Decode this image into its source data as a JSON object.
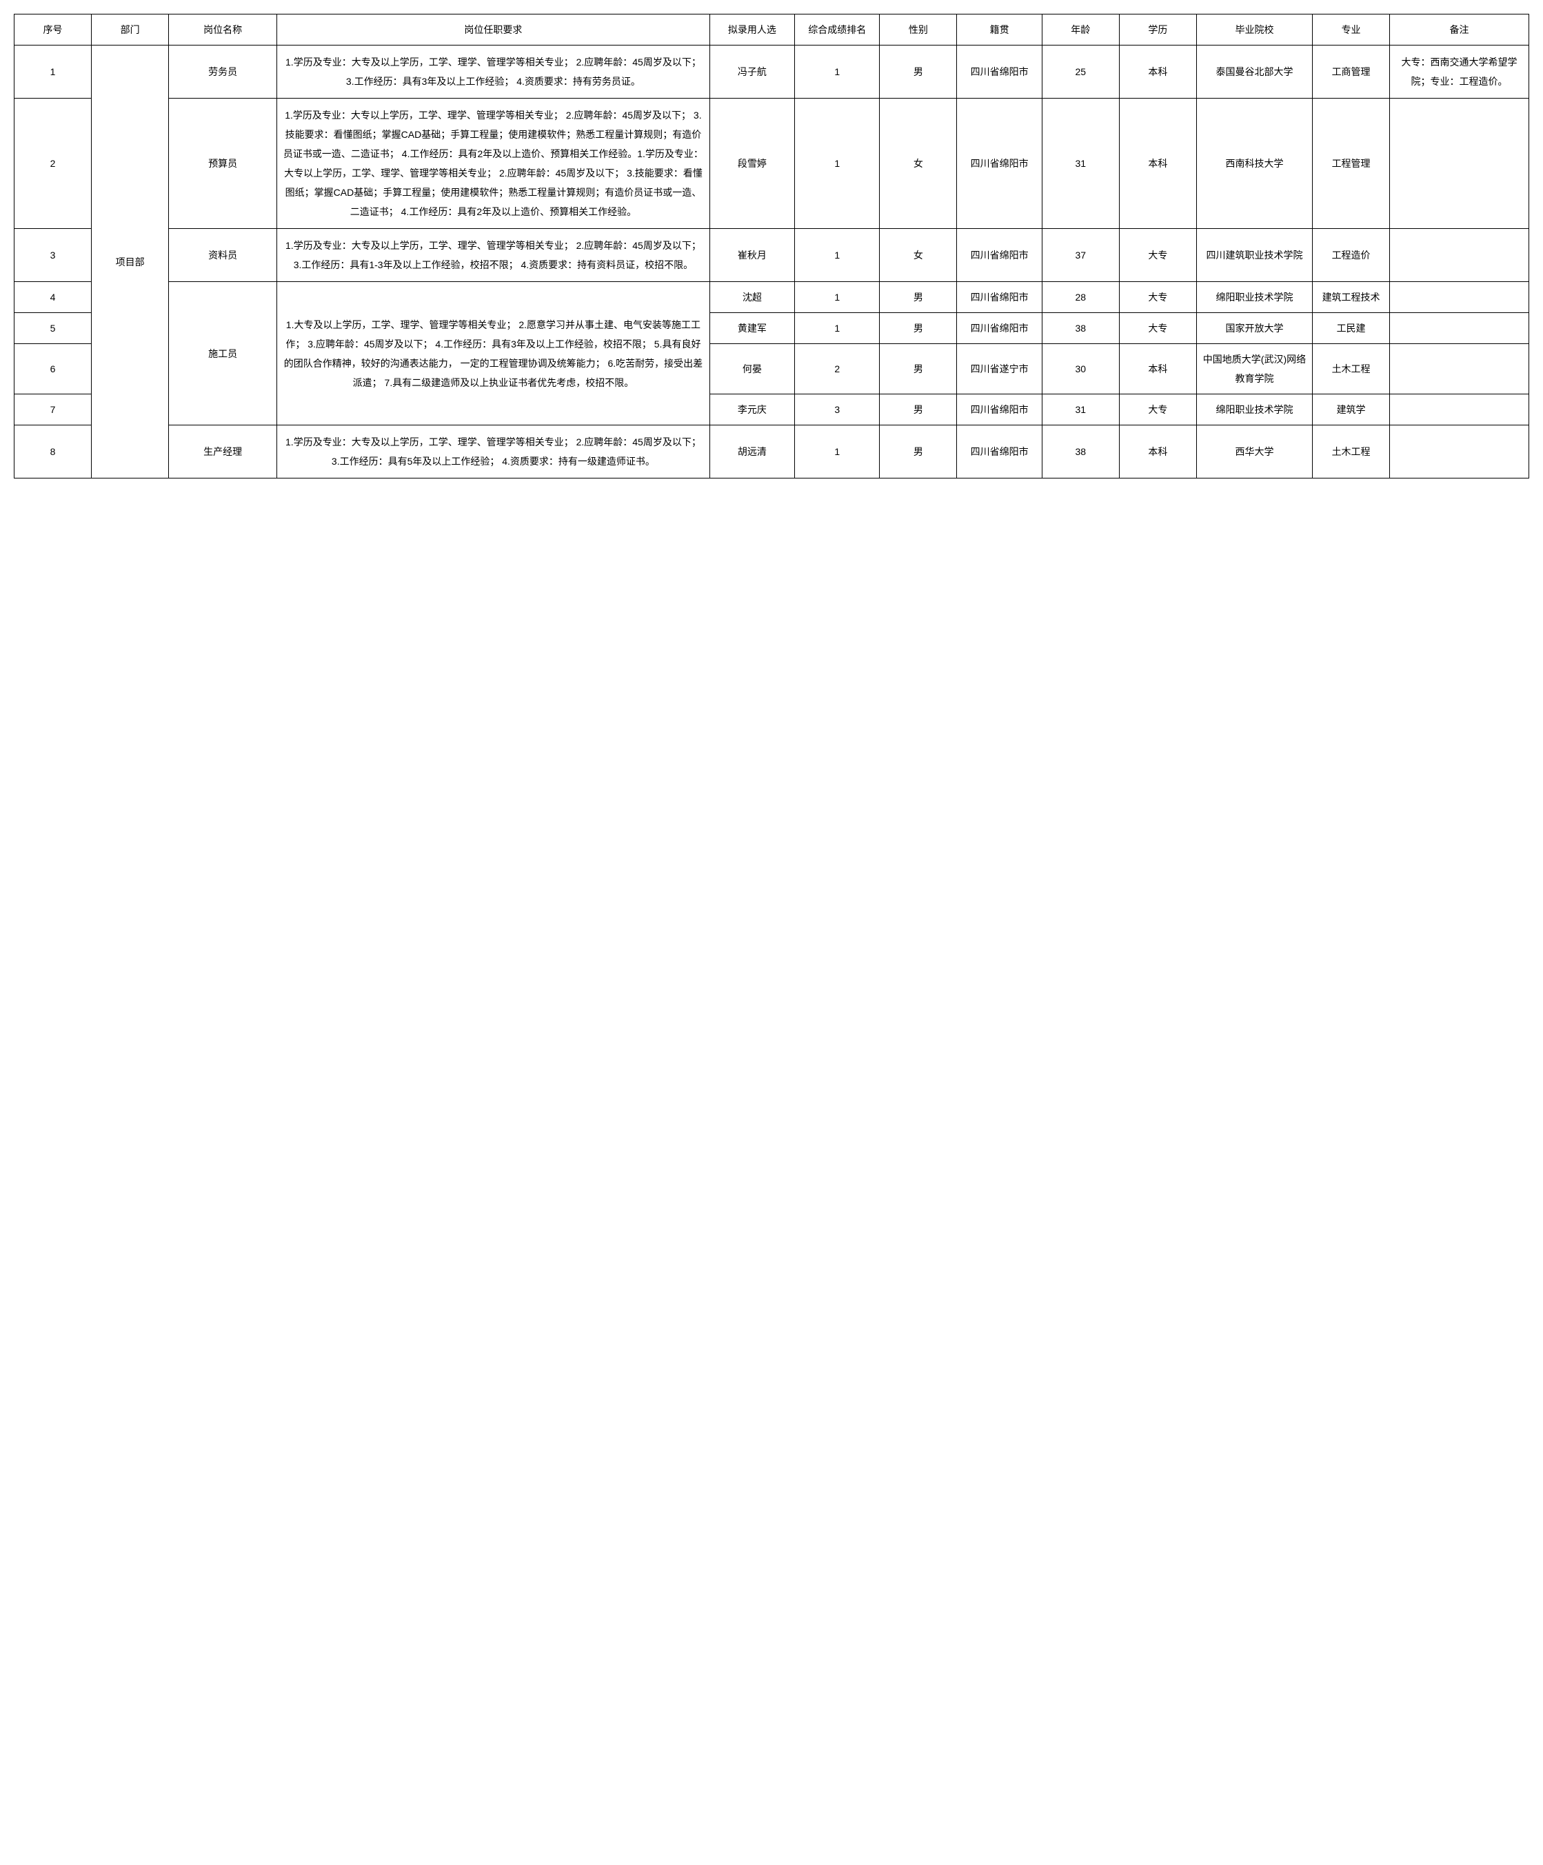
{
  "headers": {
    "seq": "序号",
    "dept": "部门",
    "position": "岗位名称",
    "requirement": "岗位任职要求",
    "candidate": "拟录用人选",
    "rank": "综合成绩排名",
    "gender": "性别",
    "origin": "籍贯",
    "age": "年龄",
    "education": "学历",
    "school": "毕业院校",
    "major": "专业",
    "remark": "备注"
  },
  "department": "项目部",
  "positions": {
    "p1": "劳务员",
    "p2": "预算员",
    "p3": "资料员",
    "p4": "施工员",
    "p5": "生产经理"
  },
  "requirements": {
    "r1": "1.学历及专业：大专及以上学历，工学、理学、管理学等相关专业； 2.应聘年龄：45周岁及以下； 3.工作经历：具有3年及以上工作经验； 4.资质要求：持有劳务员证。",
    "r2": "1.学历及专业：大专以上学历，工学、理学、管理学等相关专业； 2.应聘年龄：45周岁及以下； 3.技能要求：看懂图纸；掌握CAD基础；手算工程量；使用建模软件；熟悉工程量计算规则；有造价员证书或一造、二造证书； 4.工作经历：具有2年及以上造价、预算相关工作经验。1.学历及专业：大专以上学历，工学、理学、管理学等相关专业； 2.应聘年龄：45周岁及以下； 3.技能要求：看懂图纸；掌握CAD基础；手算工程量；使用建模软件；熟悉工程量计算规则；有造价员证书或一造、二造证书； 4.工作经历：具有2年及以上造价、预算相关工作经验。",
    "r3": "1.学历及专业：大专及以上学历，工学、理学、管理学等相关专业； 2.应聘年龄：45周岁及以下； 3.工作经历：具有1-3年及以上工作经验，校招不限； 4.资质要求：持有资料员证，校招不限。",
    "r4": "1.大专及以上学历，工学、理学、管理学等相关专业； 2.愿意学习并从事土建、电气安装等施工工作； 3.应聘年龄：45周岁及以下； 4.工作经历：具有3年及以上工作经验，校招不限； 5.具有良好的团队合作精神，较好的沟通表达能力， 一定的工程管理协调及统筹能力； 6.吃苦耐劳，接受出差派遣； 7.具有二级建造师及以上执业证书者优先考虑，校招不限。",
    "r5": "1.学历及专业：大专及以上学历，工学、理学、管理学等相关专业； 2.应聘年龄：45周岁及以下； 3.工作经历：具有5年及以上工作经验； 4.资质要求：持有一级建造师证书。"
  },
  "rows": {
    "row1": {
      "seq": "1",
      "candidate": "冯子航",
      "rank": "1",
      "gender": "男",
      "origin": "四川省绵阳市",
      "age": "25",
      "education": "本科",
      "school": "泰国曼谷北部大学",
      "major": "工商管理",
      "remark": "大专：西南交通大学希望学院；专业：工程造价。"
    },
    "row2": {
      "seq": "2",
      "candidate": "段雪婷",
      "rank": "1",
      "gender": "女",
      "origin": "四川省绵阳市",
      "age": "31",
      "education": "本科",
      "school": "西南科技大学",
      "major": "工程管理",
      "remark": ""
    },
    "row3": {
      "seq": "3",
      "candidate": "崔秋月",
      "rank": "1",
      "gender": "女",
      "origin": "四川省绵阳市",
      "age": "37",
      "education": "大专",
      "school": "四川建筑职业技术学院",
      "major": "工程造价",
      "remark": ""
    },
    "row4": {
      "seq": "4",
      "candidate": "沈超",
      "rank": "1",
      "gender": "男",
      "origin": "四川省绵阳市",
      "age": "28",
      "education": "大专",
      "school": "绵阳职业技术学院",
      "major": "建筑工程技术",
      "remark": ""
    },
    "row5": {
      "seq": "5",
      "candidate": "黄建军",
      "rank": "1",
      "gender": "男",
      "origin": "四川省绵阳市",
      "age": "38",
      "education": "大专",
      "school": "国家开放大学",
      "major": "工民建",
      "remark": ""
    },
    "row6": {
      "seq": "6",
      "candidate": "何晏",
      "rank": "2",
      "gender": "男",
      "origin": "四川省遂宁市",
      "age": "30",
      "education": "本科",
      "school": "中国地质大学(武汉)网络教育学院",
      "major": "土木工程",
      "remark": ""
    },
    "row7": {
      "seq": "7",
      "candidate": "李元庆",
      "rank": "3",
      "gender": "男",
      "origin": "四川省绵阳市",
      "age": "31",
      "education": "大专",
      "school": "绵阳职业技术学院",
      "major": "建筑学",
      "remark": ""
    },
    "row8": {
      "seq": "8",
      "candidate": "胡远清",
      "rank": "1",
      "gender": "男",
      "origin": "四川省绵阳市",
      "age": "38",
      "education": "本科",
      "school": "西华大学",
      "major": "土木工程",
      "remark": ""
    }
  }
}
